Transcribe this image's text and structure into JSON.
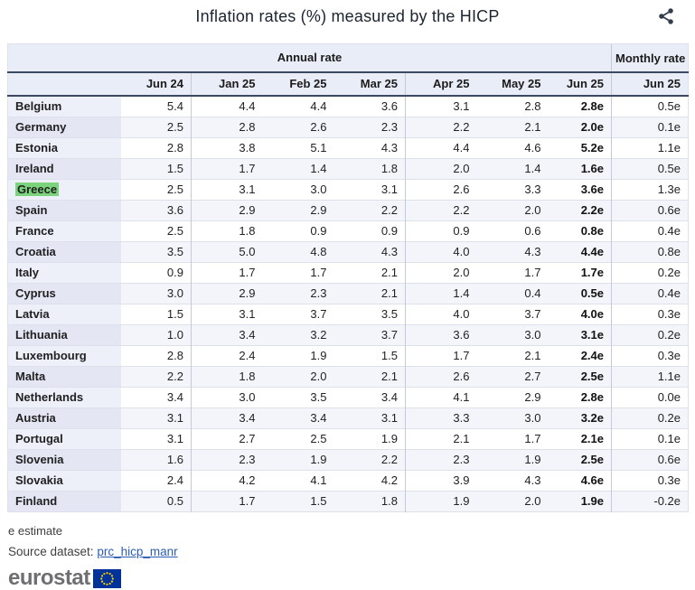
{
  "title": "Inflation rates (%) measured by the HICP",
  "chart_data": {
    "type": "table",
    "title": "Inflation rates (%) measured by the HICP",
    "column_groups": [
      {
        "label": "Annual rate",
        "span": 7
      },
      {
        "label": "Monthly rate",
        "span": 1
      }
    ],
    "columns": [
      "Jun 24",
      "Jan 25",
      "Feb 25",
      "Mar 25",
      "Apr 25",
      "May 25",
      "Jun 25",
      "Jun 25"
    ],
    "rows": [
      {
        "country": "Belgium",
        "highlighted": false,
        "values": [
          "5.4",
          "4.4",
          "4.4",
          "3.6",
          "3.1",
          "2.8",
          "2.8e",
          "0.5e"
        ]
      },
      {
        "country": "Germany",
        "highlighted": false,
        "values": [
          "2.5",
          "2.8",
          "2.6",
          "2.3",
          "2.2",
          "2.1",
          "2.0e",
          "0.1e"
        ]
      },
      {
        "country": "Estonia",
        "highlighted": false,
        "values": [
          "2.8",
          "3.8",
          "5.1",
          "4.3",
          "4.4",
          "4.6",
          "5.2e",
          "1.1e"
        ]
      },
      {
        "country": "Ireland",
        "highlighted": false,
        "values": [
          "1.5",
          "1.7",
          "1.4",
          "1.8",
          "2.0",
          "1.4",
          "1.6e",
          "0.5e"
        ]
      },
      {
        "country": "Greece",
        "highlighted": true,
        "values": [
          "2.5",
          "3.1",
          "3.0",
          "3.1",
          "2.6",
          "3.3",
          "3.6e",
          "1.3e"
        ]
      },
      {
        "country": "Spain",
        "highlighted": false,
        "values": [
          "3.6",
          "2.9",
          "2.9",
          "2.2",
          "2.2",
          "2.0",
          "2.2e",
          "0.6e"
        ]
      },
      {
        "country": "France",
        "highlighted": false,
        "values": [
          "2.5",
          "1.8",
          "0.9",
          "0.9",
          "0.9",
          "0.6",
          "0.8e",
          "0.4e"
        ]
      },
      {
        "country": "Croatia",
        "highlighted": false,
        "values": [
          "3.5",
          "5.0",
          "4.8",
          "4.3",
          "4.0",
          "4.3",
          "4.4e",
          "0.8e"
        ]
      },
      {
        "country": "Italy",
        "highlighted": false,
        "values": [
          "0.9",
          "1.7",
          "1.7",
          "2.1",
          "2.0",
          "1.7",
          "1.7e",
          "0.2e"
        ]
      },
      {
        "country": "Cyprus",
        "highlighted": false,
        "values": [
          "3.0",
          "2.9",
          "2.3",
          "2.1",
          "1.4",
          "0.4",
          "0.5e",
          "0.4e"
        ]
      },
      {
        "country": "Latvia",
        "highlighted": false,
        "values": [
          "1.5",
          "3.1",
          "3.7",
          "3.5",
          "4.0",
          "3.7",
          "4.0e",
          "0.3e"
        ]
      },
      {
        "country": "Lithuania",
        "highlighted": false,
        "values": [
          "1.0",
          "3.4",
          "3.2",
          "3.7",
          "3.6",
          "3.0",
          "3.1e",
          "0.2e"
        ]
      },
      {
        "country": "Luxembourg",
        "highlighted": false,
        "values": [
          "2.8",
          "2.4",
          "1.9",
          "1.5",
          "1.7",
          "2.1",
          "2.4e",
          "0.3e"
        ]
      },
      {
        "country": "Malta",
        "highlighted": false,
        "values": [
          "2.2",
          "1.8",
          "2.0",
          "2.1",
          "2.6",
          "2.7",
          "2.5e",
          "1.1e"
        ]
      },
      {
        "country": "Netherlands",
        "highlighted": false,
        "values": [
          "3.4",
          "3.0",
          "3.5",
          "3.4",
          "4.1",
          "2.9",
          "2.8e",
          "0.0e"
        ]
      },
      {
        "country": "Austria",
        "highlighted": false,
        "values": [
          "3.1",
          "3.4",
          "3.4",
          "3.1",
          "3.3",
          "3.0",
          "3.2e",
          "0.2e"
        ]
      },
      {
        "country": "Portugal",
        "highlighted": false,
        "values": [
          "3.1",
          "2.7",
          "2.5",
          "1.9",
          "2.1",
          "1.7",
          "2.1e",
          "0.1e"
        ]
      },
      {
        "country": "Slovenia",
        "highlighted": false,
        "values": [
          "1.6",
          "2.3",
          "1.9",
          "2.2",
          "2.3",
          "1.9",
          "2.5e",
          "0.6e"
        ]
      },
      {
        "country": "Slovakia",
        "highlighted": false,
        "values": [
          "2.4",
          "4.2",
          "4.1",
          "4.2",
          "3.9",
          "4.3",
          "4.6e",
          "0.3e"
        ]
      },
      {
        "country": "Finland",
        "highlighted": false,
        "values": [
          "0.5",
          "1.7",
          "1.5",
          "1.8",
          "1.9",
          "2.0",
          "1.9e",
          "-0.2e"
        ]
      }
    ],
    "value_notes": "e = estimate; bold Jun 25 annual column values are estimates"
  },
  "footnote": "e estimate",
  "source": {
    "label": "Source dataset: ",
    "link": "prc_hicp_manr"
  },
  "logo": {
    "text": "eurostat"
  },
  "icons": {
    "share": "share-icon",
    "eu_flag": "eu-flag-icon"
  },
  "colors": {
    "header_bg": "#e9edf7",
    "dark_rule": "#3c4860",
    "row_stripe": "#f3f5fa",
    "label_stripe": "#e4e7f3",
    "label_bg": "#edeff9",
    "highlight_green": "#7bd47b",
    "link_blue": "#2a5db3",
    "eu_blue": "#003399",
    "eu_star_yellow": "#ffcc00",
    "logo_gray": "#6e6f71",
    "share_icon": "#333e4e"
  }
}
